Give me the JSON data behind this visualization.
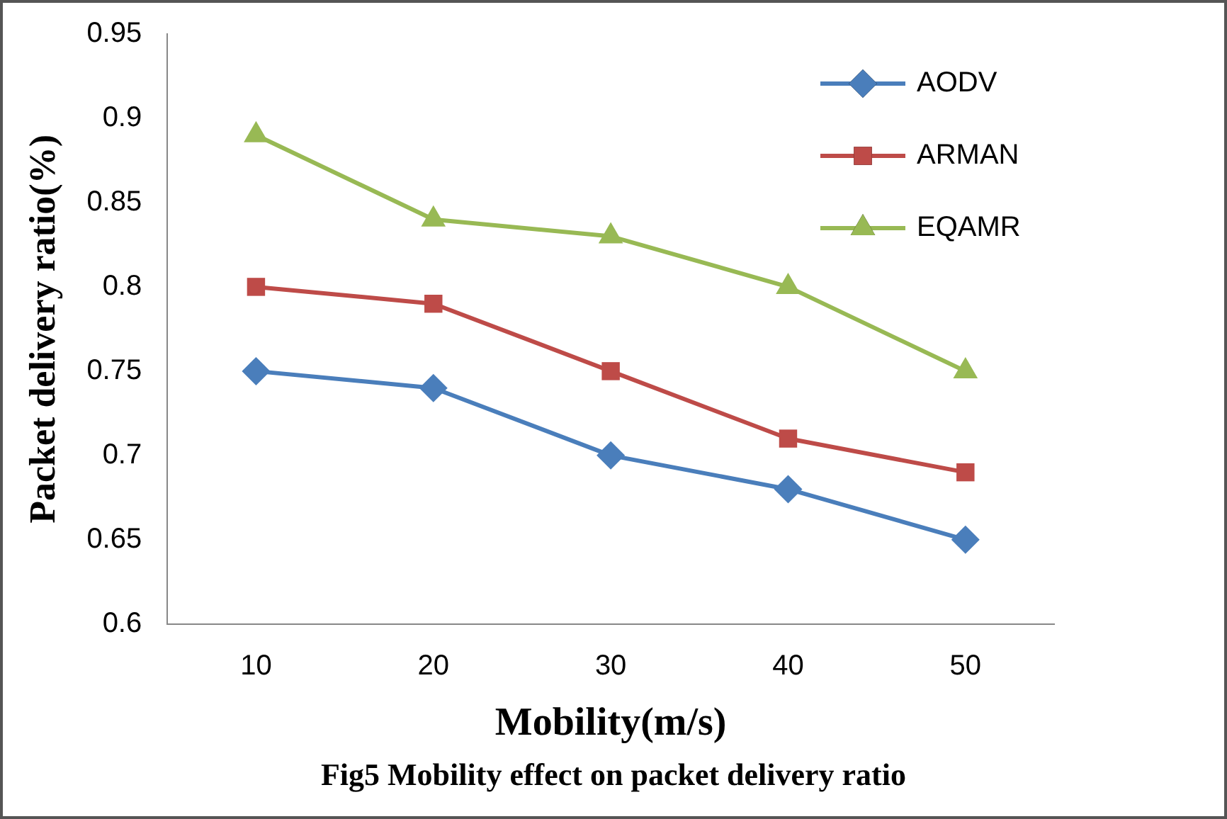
{
  "chart_data": {
    "type": "line",
    "xlabel": "Mobility(m/s)",
    "ylabel": "Packet delivery ratio(%)",
    "categories": [
      "10",
      "20",
      "30",
      "40",
      "50"
    ],
    "series": [
      {
        "name": "AODV",
        "color": "#4a7ebb",
        "marker": "diamond",
        "values": [
          0.75,
          0.74,
          0.7,
          0.68,
          0.65
        ]
      },
      {
        "name": "ARMAN",
        "color": "#be4b48",
        "marker": "square",
        "values": [
          0.8,
          0.79,
          0.75,
          0.71,
          0.69
        ]
      },
      {
        "name": "EQAMR",
        "color": "#98b954",
        "marker": "triangle",
        "values": [
          0.89,
          0.84,
          0.83,
          0.8,
          0.75
        ]
      }
    ],
    "ylim": [
      0.6,
      0.95
    ],
    "yticks": [
      0.6,
      0.65,
      0.7,
      0.75,
      0.8,
      0.85,
      0.9,
      0.95
    ],
    "grid": false,
    "legend": "top right",
    "line_style": "solid",
    "annotations": [
      "Fig5 Mobility  effect on packet delivery ratio"
    ]
  }
}
